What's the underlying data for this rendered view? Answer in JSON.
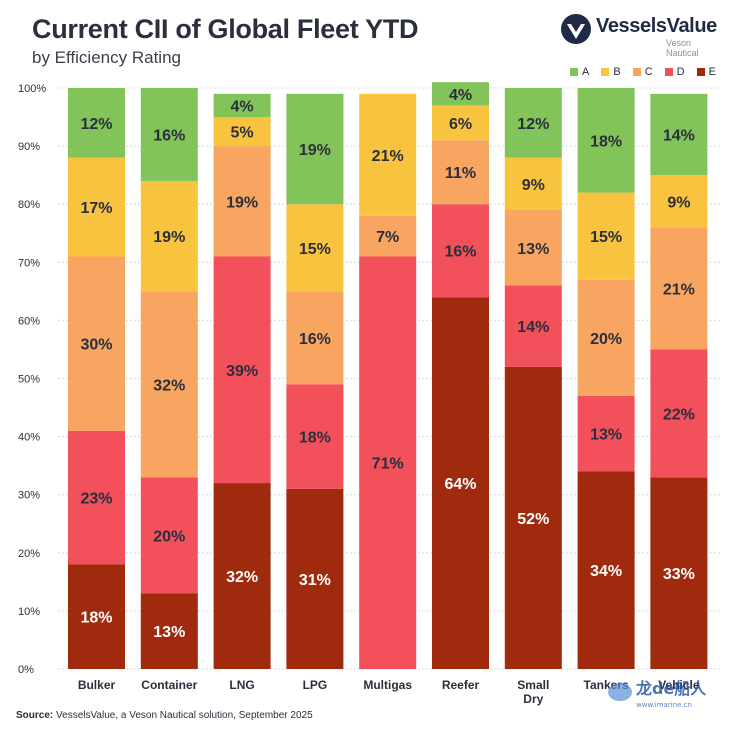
{
  "header": {
    "title": "Current CII of Global Fleet YTD",
    "subtitle": "by Efficiency Rating"
  },
  "brand": {
    "name": "VesselsValue",
    "sub": "Veson Nautical"
  },
  "footer": {
    "source_label": "Source:",
    "source_text": "VesselsValue, a Veson Nautical solution, September 2025"
  },
  "watermark": {
    "text": "龙de船人",
    "url": "www.imarine.cn"
  },
  "colors": {
    "A": "#82c35a",
    "B": "#f8c33e",
    "C": "#f7a560",
    "D": "#f2505a",
    "E": "#a02a0e"
  },
  "chart_data": {
    "type": "bar",
    "stacked": true,
    "normalized": true,
    "categories": [
      "Bulker",
      "Container",
      "LNG",
      "LPG",
      "Multigas",
      "Reefer",
      "Small Dry",
      "Tankers",
      "Vehicle"
    ],
    "category_lines": [
      [
        "Bulker"
      ],
      [
        "Container"
      ],
      [
        "LNG"
      ],
      [
        "LPG"
      ],
      [
        "Multigas"
      ],
      [
        "Reefer"
      ],
      [
        "Small",
        "Dry"
      ],
      [
        "Tankers"
      ],
      [
        "Vehicle"
      ]
    ],
    "series": [
      {
        "name": "A",
        "values": [
          12,
          16,
          4,
          19,
          0,
          4,
          12,
          18,
          14
        ]
      },
      {
        "name": "B",
        "values": [
          17,
          19,
          5,
          15,
          21,
          6,
          9,
          15,
          9
        ]
      },
      {
        "name": "C",
        "values": [
          30,
          32,
          19,
          16,
          7,
          11,
          13,
          20,
          21
        ]
      },
      {
        "name": "D",
        "values": [
          23,
          20,
          39,
          18,
          71,
          16,
          14,
          13,
          22
        ]
      },
      {
        "name": "E",
        "values": [
          18,
          13,
          32,
          31,
          0,
          64,
          52,
          34,
          33
        ]
      }
    ],
    "stack_order_bottom_to_top": [
      "E",
      "D",
      "C",
      "B",
      "A"
    ],
    "legend_order": [
      "A",
      "B",
      "C",
      "D",
      "E"
    ],
    "ylim": [
      0,
      100
    ],
    "yticks": [
      "0%",
      "10%",
      "20%",
      "30%",
      "40%",
      "50%",
      "60%",
      "70%",
      "80%",
      "90%",
      "100%"
    ],
    "grid": true,
    "legend_position": "top-right",
    "value_suffix": "%"
  }
}
